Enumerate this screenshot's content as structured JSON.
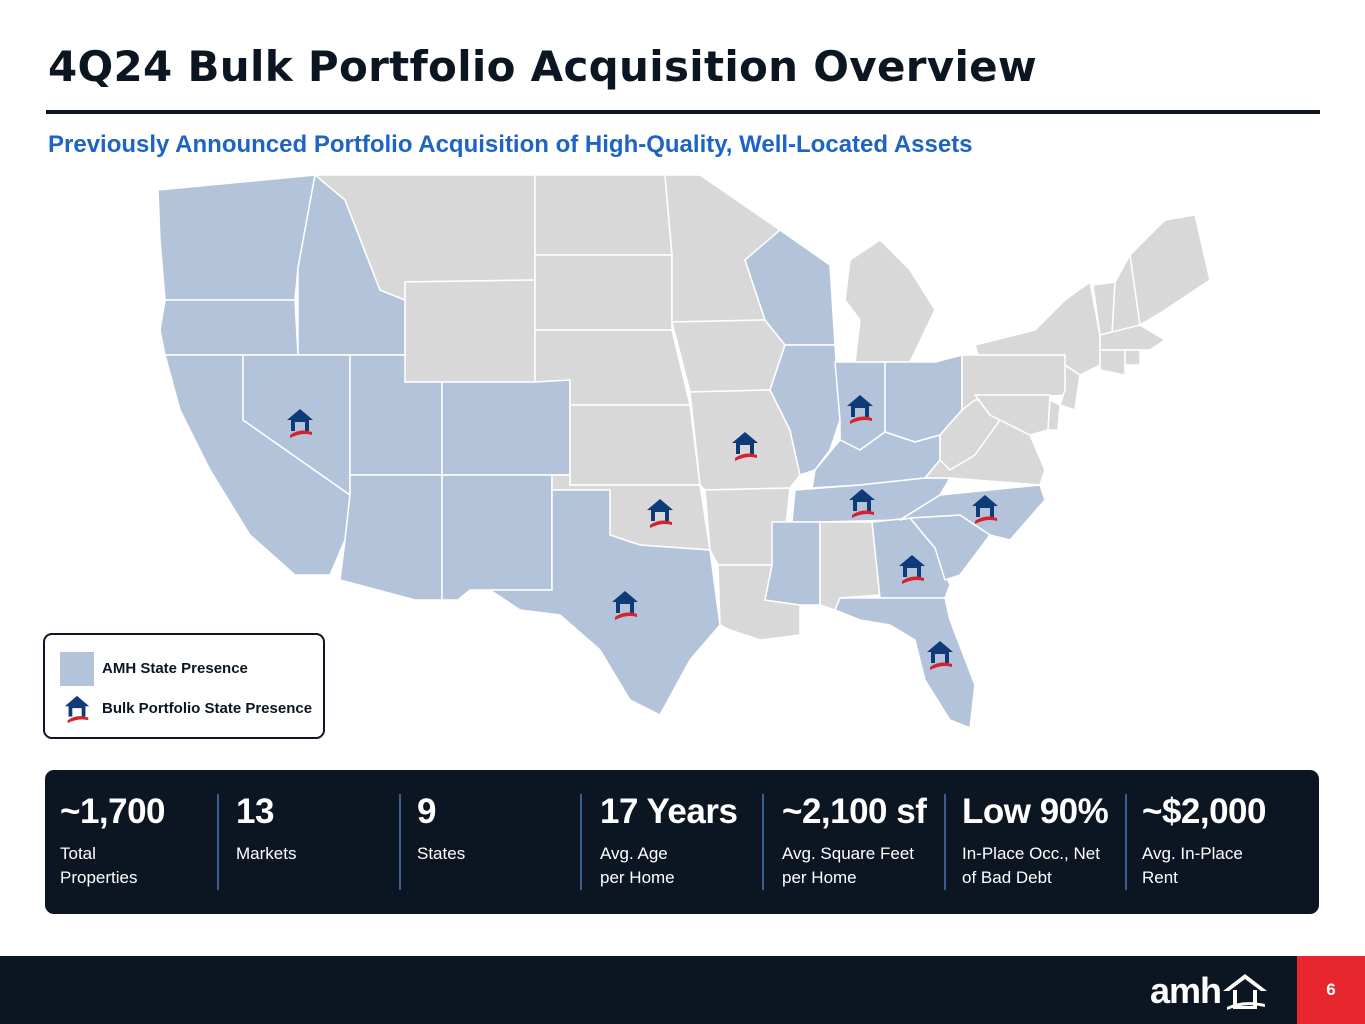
{
  "header": {
    "title": "4Q24 Bulk Portfolio Acquisition Overview",
    "subtitle": "Previously Announced Portfolio Acquisition of High-Quality, Well-Located Assets"
  },
  "colors": {
    "navy": "#0c1622",
    "subtitle_blue": "#1d64c4",
    "amh_state": "#b3c4da",
    "other_state": "#d8d8d8",
    "icon_blue": "#0f3a78",
    "icon_red": "#d6222b",
    "page_red": "#e8262d"
  },
  "map": {
    "amh_states": [
      "WA",
      "OR",
      "CA",
      "ID",
      "NV",
      "UT",
      "AZ",
      "CO",
      "NM",
      "TX",
      "WI",
      "IL",
      "IN",
      "OH",
      "KY",
      "TN",
      "MS",
      "GA",
      "FL",
      "SC",
      "NC"
    ],
    "bulk_portfolio_states": [
      "NV",
      "MO",
      "IN",
      "OK",
      "TN",
      "NC",
      "GA",
      "TX",
      "FL"
    ],
    "state_icon": "house-roof-swoosh-icon"
  },
  "legend": {
    "amh_label": "AMH State Presence",
    "bulk_label": "Bulk Portfolio State Presence"
  },
  "stats": [
    {
      "value": "~1,700",
      "label": "Total\nProperties"
    },
    {
      "value": "13",
      "label": "Markets"
    },
    {
      "value": "9",
      "label": "States"
    },
    {
      "value": "17 Years",
      "label": "Avg. Age\nper Home"
    },
    {
      "value": "~2,100 sf",
      "label": "Avg. Square Feet\nper Home"
    },
    {
      "value": "Low 90%",
      "label": "In-Place Occ., Net\nof Bad Debt"
    },
    {
      "value": "~$2,000",
      "label": "Avg. In-Place\nRent"
    }
  ],
  "footer": {
    "logo_text": "amh",
    "page_number": "6"
  }
}
